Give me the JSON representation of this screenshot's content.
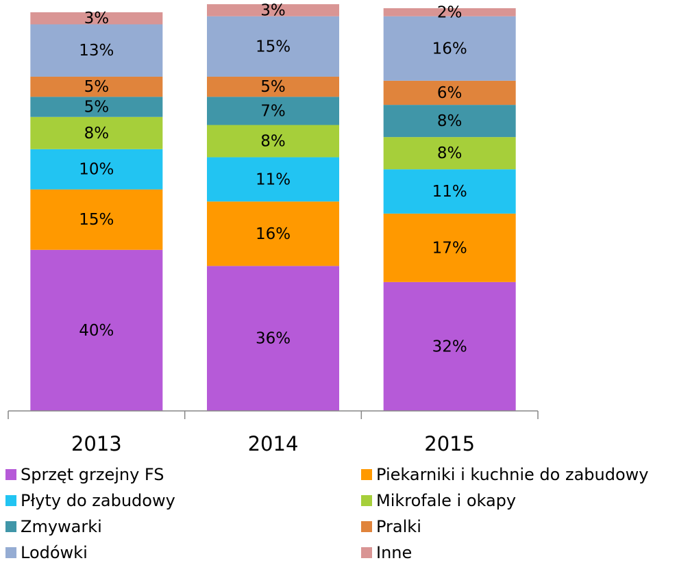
{
  "chart_data": {
    "type": "stacked_bar",
    "categories": [
      "2013",
      "2014",
      "2015"
    ],
    "ylim": [
      0,
      100
    ],
    "series": [
      {
        "name": "Sprzęt grzejny FS",
        "color": "#b65ad8",
        "values": [
          40,
          36,
          32
        ],
        "value_labels": [
          "40%",
          "36%",
          "32%"
        ]
      },
      {
        "name": "Piekarniki i kuchnie do zabudowy",
        "color": "#ff9900",
        "values": [
          15,
          16,
          17
        ],
        "value_labels": [
          "15%",
          "16%",
          "17%"
        ]
      },
      {
        "name": "Płyty do zabudowy",
        "color": "#22c4f2",
        "values": [
          10,
          11,
          11
        ],
        "value_labels": [
          "10%",
          "11%",
          "11%"
        ]
      },
      {
        "name": "Mikrofale i okapy",
        "color": "#a6cf3a",
        "values": [
          8,
          8,
          8
        ],
        "value_labels": [
          "8%",
          "8%",
          "8%"
        ]
      },
      {
        "name": "Zmywarki",
        "color": "#4096a8",
        "values": [
          5,
          7,
          8
        ],
        "value_labels": [
          "5%",
          "7%",
          "8%"
        ]
      },
      {
        "name": "Pralki",
        "color": "#e0843c",
        "values": [
          5,
          5,
          6
        ],
        "value_labels": [
          "5%",
          "5%",
          "6%"
        ]
      },
      {
        "name": "Lodówki",
        "color": "#95acd3",
        "values": [
          13,
          15,
          16
        ],
        "value_labels": [
          "13%",
          "15%",
          "16%"
        ]
      },
      {
        "name": "Inne",
        "color": "#d99594",
        "values": [
          3,
          3,
          2
        ],
        "value_labels": [
          "3%",
          "3%",
          "2%"
        ]
      }
    ]
  }
}
